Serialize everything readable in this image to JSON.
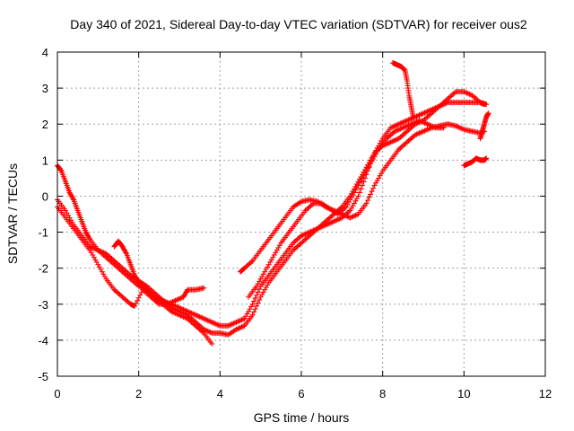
{
  "chart_data": {
    "type": "scatter",
    "title": "Day 340 of 2021, Sidereal Day-to-day VTEC variation (SDTVAR) for receiver ous2",
    "xlabel": "GPS time / hours",
    "ylabel": "SDTVAR / TECUs",
    "xlim": [
      0,
      12
    ],
    "ylim": [
      -5,
      4
    ],
    "xticks": [
      0,
      2,
      4,
      6,
      8,
      10,
      12
    ],
    "yticks": [
      -5,
      -4,
      -3,
      -2,
      -1,
      0,
      1,
      2,
      3,
      4
    ],
    "grid": true,
    "marker": "plus",
    "color": "#ff0000",
    "series": [
      {
        "points": [
          [
            0.0,
            0.85
          ],
          [
            0.1,
            0.7
          ],
          [
            0.2,
            0.4
          ],
          [
            0.3,
            0.1
          ],
          [
            0.4,
            -0.1
          ],
          [
            0.5,
            -0.4
          ],
          [
            0.6,
            -0.7
          ],
          [
            0.7,
            -1.0
          ],
          [
            0.8,
            -1.2
          ],
          [
            1.0,
            -1.5
          ],
          [
            1.2,
            -1.7
          ],
          [
            1.4,
            -1.9
          ],
          [
            1.6,
            -2.1
          ],
          [
            1.8,
            -2.3
          ],
          [
            2.0,
            -2.5
          ],
          [
            2.2,
            -2.6
          ],
          [
            2.4,
            -2.8
          ],
          [
            2.6,
            -2.9
          ],
          [
            2.8,
            -3.0
          ],
          [
            3.0,
            -3.1
          ],
          [
            3.2,
            -3.2
          ],
          [
            3.4,
            -3.3
          ],
          [
            3.6,
            -3.4
          ],
          [
            3.8,
            -3.5
          ],
          [
            4.0,
            -3.6
          ],
          [
            4.2,
            -3.6
          ],
          [
            4.4,
            -3.5
          ],
          [
            4.6,
            -3.4
          ],
          [
            4.8,
            -3.0
          ],
          [
            5.0,
            -2.5
          ],
          [
            5.2,
            -2.2
          ],
          [
            5.4,
            -1.9
          ],
          [
            5.6,
            -1.6
          ],
          [
            5.8,
            -1.3
          ],
          [
            6.0,
            -1.1
          ],
          [
            6.2,
            -1.0
          ],
          [
            6.4,
            -0.9
          ],
          [
            6.6,
            -0.8
          ],
          [
            6.8,
            -0.7
          ],
          [
            7.0,
            -0.6
          ],
          [
            7.2,
            -0.4
          ],
          [
            7.4,
            0.0
          ],
          [
            7.6,
            0.6
          ],
          [
            7.8,
            1.2
          ],
          [
            8.0,
            1.6
          ],
          [
            8.2,
            1.9
          ],
          [
            8.4,
            2.0
          ],
          [
            8.6,
            2.1
          ],
          [
            8.8,
            2.2
          ],
          [
            9.0,
            2.3
          ],
          [
            9.2,
            2.4
          ],
          [
            9.4,
            2.5
          ],
          [
            9.6,
            2.6
          ],
          [
            9.8,
            2.6
          ],
          [
            10.0,
            2.6
          ],
          [
            10.2,
            2.6
          ],
          [
            10.4,
            2.6
          ],
          [
            10.55,
            2.55
          ]
        ]
      },
      {
        "points": [
          [
            0.0,
            -0.1
          ],
          [
            0.2,
            -0.4
          ],
          [
            0.4,
            -0.8
          ],
          [
            0.6,
            -1.1
          ],
          [
            0.8,
            -1.4
          ],
          [
            1.0,
            -1.5
          ],
          [
            1.2,
            -1.6
          ],
          [
            1.4,
            -1.8
          ],
          [
            1.6,
            -2.0
          ],
          [
            1.8,
            -2.2
          ],
          [
            2.0,
            -2.35
          ],
          [
            2.2,
            -2.5
          ],
          [
            2.4,
            -2.7
          ],
          [
            2.6,
            -2.9
          ],
          [
            2.8,
            -3.1
          ],
          [
            3.0,
            -3.2
          ],
          [
            3.2,
            -3.3
          ],
          [
            3.4,
            -3.5
          ],
          [
            3.6,
            -3.7
          ],
          [
            3.8,
            -3.8
          ],
          [
            4.0,
            -3.8
          ],
          [
            4.2,
            -3.85
          ],
          [
            4.4,
            -3.7
          ],
          [
            4.6,
            -3.6
          ],
          [
            4.8,
            -3.3
          ],
          [
            5.0,
            -2.8
          ],
          [
            5.2,
            -2.4
          ],
          [
            5.4,
            -2.1
          ],
          [
            5.6,
            -1.8
          ],
          [
            5.8,
            -1.5
          ],
          [
            6.0,
            -1.3
          ],
          [
            6.2,
            -1.1
          ],
          [
            6.4,
            -0.9
          ],
          [
            6.6,
            -0.7
          ],
          [
            6.8,
            -0.5
          ],
          [
            7.0,
            -0.3
          ],
          [
            7.2,
            0.0
          ],
          [
            7.4,
            0.4
          ],
          [
            7.6,
            0.8
          ],
          [
            7.8,
            1.2
          ],
          [
            8.0,
            1.4
          ],
          [
            8.2,
            1.5
          ],
          [
            8.4,
            1.6
          ],
          [
            8.6,
            1.8
          ],
          [
            8.8,
            2.0
          ],
          [
            9.0,
            2.1
          ],
          [
            9.2,
            2.3
          ],
          [
            9.4,
            2.5
          ],
          [
            9.6,
            2.7
          ],
          [
            9.8,
            2.9
          ],
          [
            10.0,
            2.9
          ],
          [
            10.2,
            2.8
          ],
          [
            10.4,
            2.6
          ],
          [
            10.5,
            2.55
          ]
        ]
      },
      {
        "points": [
          [
            0.0,
            -0.3
          ],
          [
            0.2,
            -0.6
          ],
          [
            0.4,
            -0.9
          ],
          [
            0.6,
            -1.2
          ],
          [
            0.8,
            -1.5
          ],
          [
            1.0,
            -1.9
          ],
          [
            1.2,
            -2.3
          ],
          [
            1.4,
            -2.6
          ],
          [
            1.6,
            -2.8
          ],
          [
            1.8,
            -3.0
          ],
          [
            1.9,
            -3.05
          ],
          [
            2.1,
            -2.6
          ],
          [
            2.3,
            -2.8
          ],
          [
            2.5,
            -3.0
          ],
          [
            2.7,
            -3.0
          ],
          [
            2.9,
            -2.9
          ],
          [
            3.1,
            -2.8
          ],
          [
            3.2,
            -2.6
          ],
          [
            3.4,
            -2.6
          ],
          [
            3.6,
            -2.55
          ]
        ]
      },
      {
        "points": [
          [
            1.4,
            -1.4
          ],
          [
            1.5,
            -1.25
          ],
          [
            1.6,
            -1.4
          ],
          [
            1.7,
            -1.6
          ],
          [
            1.8,
            -1.9
          ],
          [
            1.9,
            -2.2
          ],
          [
            2.0,
            -2.4
          ],
          [
            2.2,
            -2.6
          ],
          [
            2.4,
            -2.8
          ],
          [
            2.6,
            -3.0
          ],
          [
            2.8,
            -3.2
          ],
          [
            3.0,
            -3.3
          ],
          [
            3.2,
            -3.4
          ],
          [
            3.4,
            -3.6
          ],
          [
            3.6,
            -3.8
          ],
          [
            3.8,
            -4.1
          ]
        ]
      },
      {
        "points": [
          [
            4.5,
            -2.1
          ],
          [
            4.6,
            -2.0
          ],
          [
            4.8,
            -1.8
          ],
          [
            5.0,
            -1.5
          ],
          [
            5.2,
            -1.2
          ],
          [
            5.4,
            -0.9
          ],
          [
            5.6,
            -0.6
          ],
          [
            5.8,
            -0.3
          ],
          [
            6.0,
            -0.15
          ],
          [
            6.2,
            -0.1
          ],
          [
            6.4,
            -0.15
          ],
          [
            6.6,
            -0.3
          ],
          [
            6.8,
            -0.4
          ],
          [
            7.0,
            -0.5
          ],
          [
            7.2,
            -0.6
          ],
          [
            7.4,
            -0.5
          ],
          [
            7.6,
            -0.2
          ],
          [
            7.8,
            0.3
          ],
          [
            8.0,
            0.7
          ],
          [
            8.2,
            1.0
          ],
          [
            8.4,
            1.3
          ],
          [
            8.6,
            1.5
          ],
          [
            8.8,
            1.7
          ],
          [
            9.0,
            1.8
          ],
          [
            9.2,
            1.9
          ],
          [
            9.4,
            1.95
          ],
          [
            9.6,
            2.0
          ],
          [
            9.8,
            1.95
          ],
          [
            10.0,
            1.85
          ],
          [
            10.2,
            1.8
          ],
          [
            10.4,
            1.75
          ],
          [
            10.5,
            1.8
          ]
        ]
      },
      {
        "points": [
          [
            4.7,
            -2.8
          ],
          [
            4.9,
            -2.5
          ],
          [
            5.1,
            -2.1
          ],
          [
            5.3,
            -1.7
          ],
          [
            5.5,
            -1.3
          ],
          [
            5.7,
            -1.0
          ],
          [
            5.9,
            -0.7
          ],
          [
            6.1,
            -0.4
          ],
          [
            6.3,
            -0.2
          ],
          [
            6.5,
            -0.2
          ],
          [
            6.7,
            -0.35
          ],
          [
            6.9,
            -0.5
          ],
          [
            7.1,
            -0.3
          ],
          [
            7.3,
            0.1
          ],
          [
            7.5,
            0.5
          ],
          [
            7.7,
            0.9
          ],
          [
            7.9,
            1.3
          ],
          [
            8.1,
            1.6
          ],
          [
            8.3,
            1.8
          ],
          [
            8.5,
            1.9
          ],
          [
            8.7,
            2.0
          ],
          [
            8.9,
            2.1
          ],
          [
            9.1,
            2.0
          ],
          [
            9.3,
            1.9
          ],
          [
            9.5,
            1.9
          ]
        ]
      },
      {
        "points": [
          [
            8.25,
            3.7
          ],
          [
            8.35,
            3.65
          ],
          [
            8.45,
            3.6
          ],
          [
            8.55,
            3.5
          ],
          [
            8.6,
            3.2
          ],
          [
            8.65,
            2.8
          ],
          [
            8.7,
            2.5
          ],
          [
            8.75,
            2.2
          ]
        ]
      },
      {
        "points": [
          [
            10.0,
            0.85
          ],
          [
            10.1,
            0.9
          ],
          [
            10.2,
            0.95
          ],
          [
            10.3,
            1.05
          ],
          [
            10.4,
            1.0
          ],
          [
            10.5,
            1.0
          ],
          [
            10.55,
            1.05
          ]
        ]
      },
      {
        "points": [
          [
            10.4,
            1.6
          ],
          [
            10.45,
            1.8
          ],
          [
            10.5,
            2.0
          ],
          [
            10.55,
            2.2
          ],
          [
            10.6,
            2.3
          ]
        ]
      }
    ]
  }
}
